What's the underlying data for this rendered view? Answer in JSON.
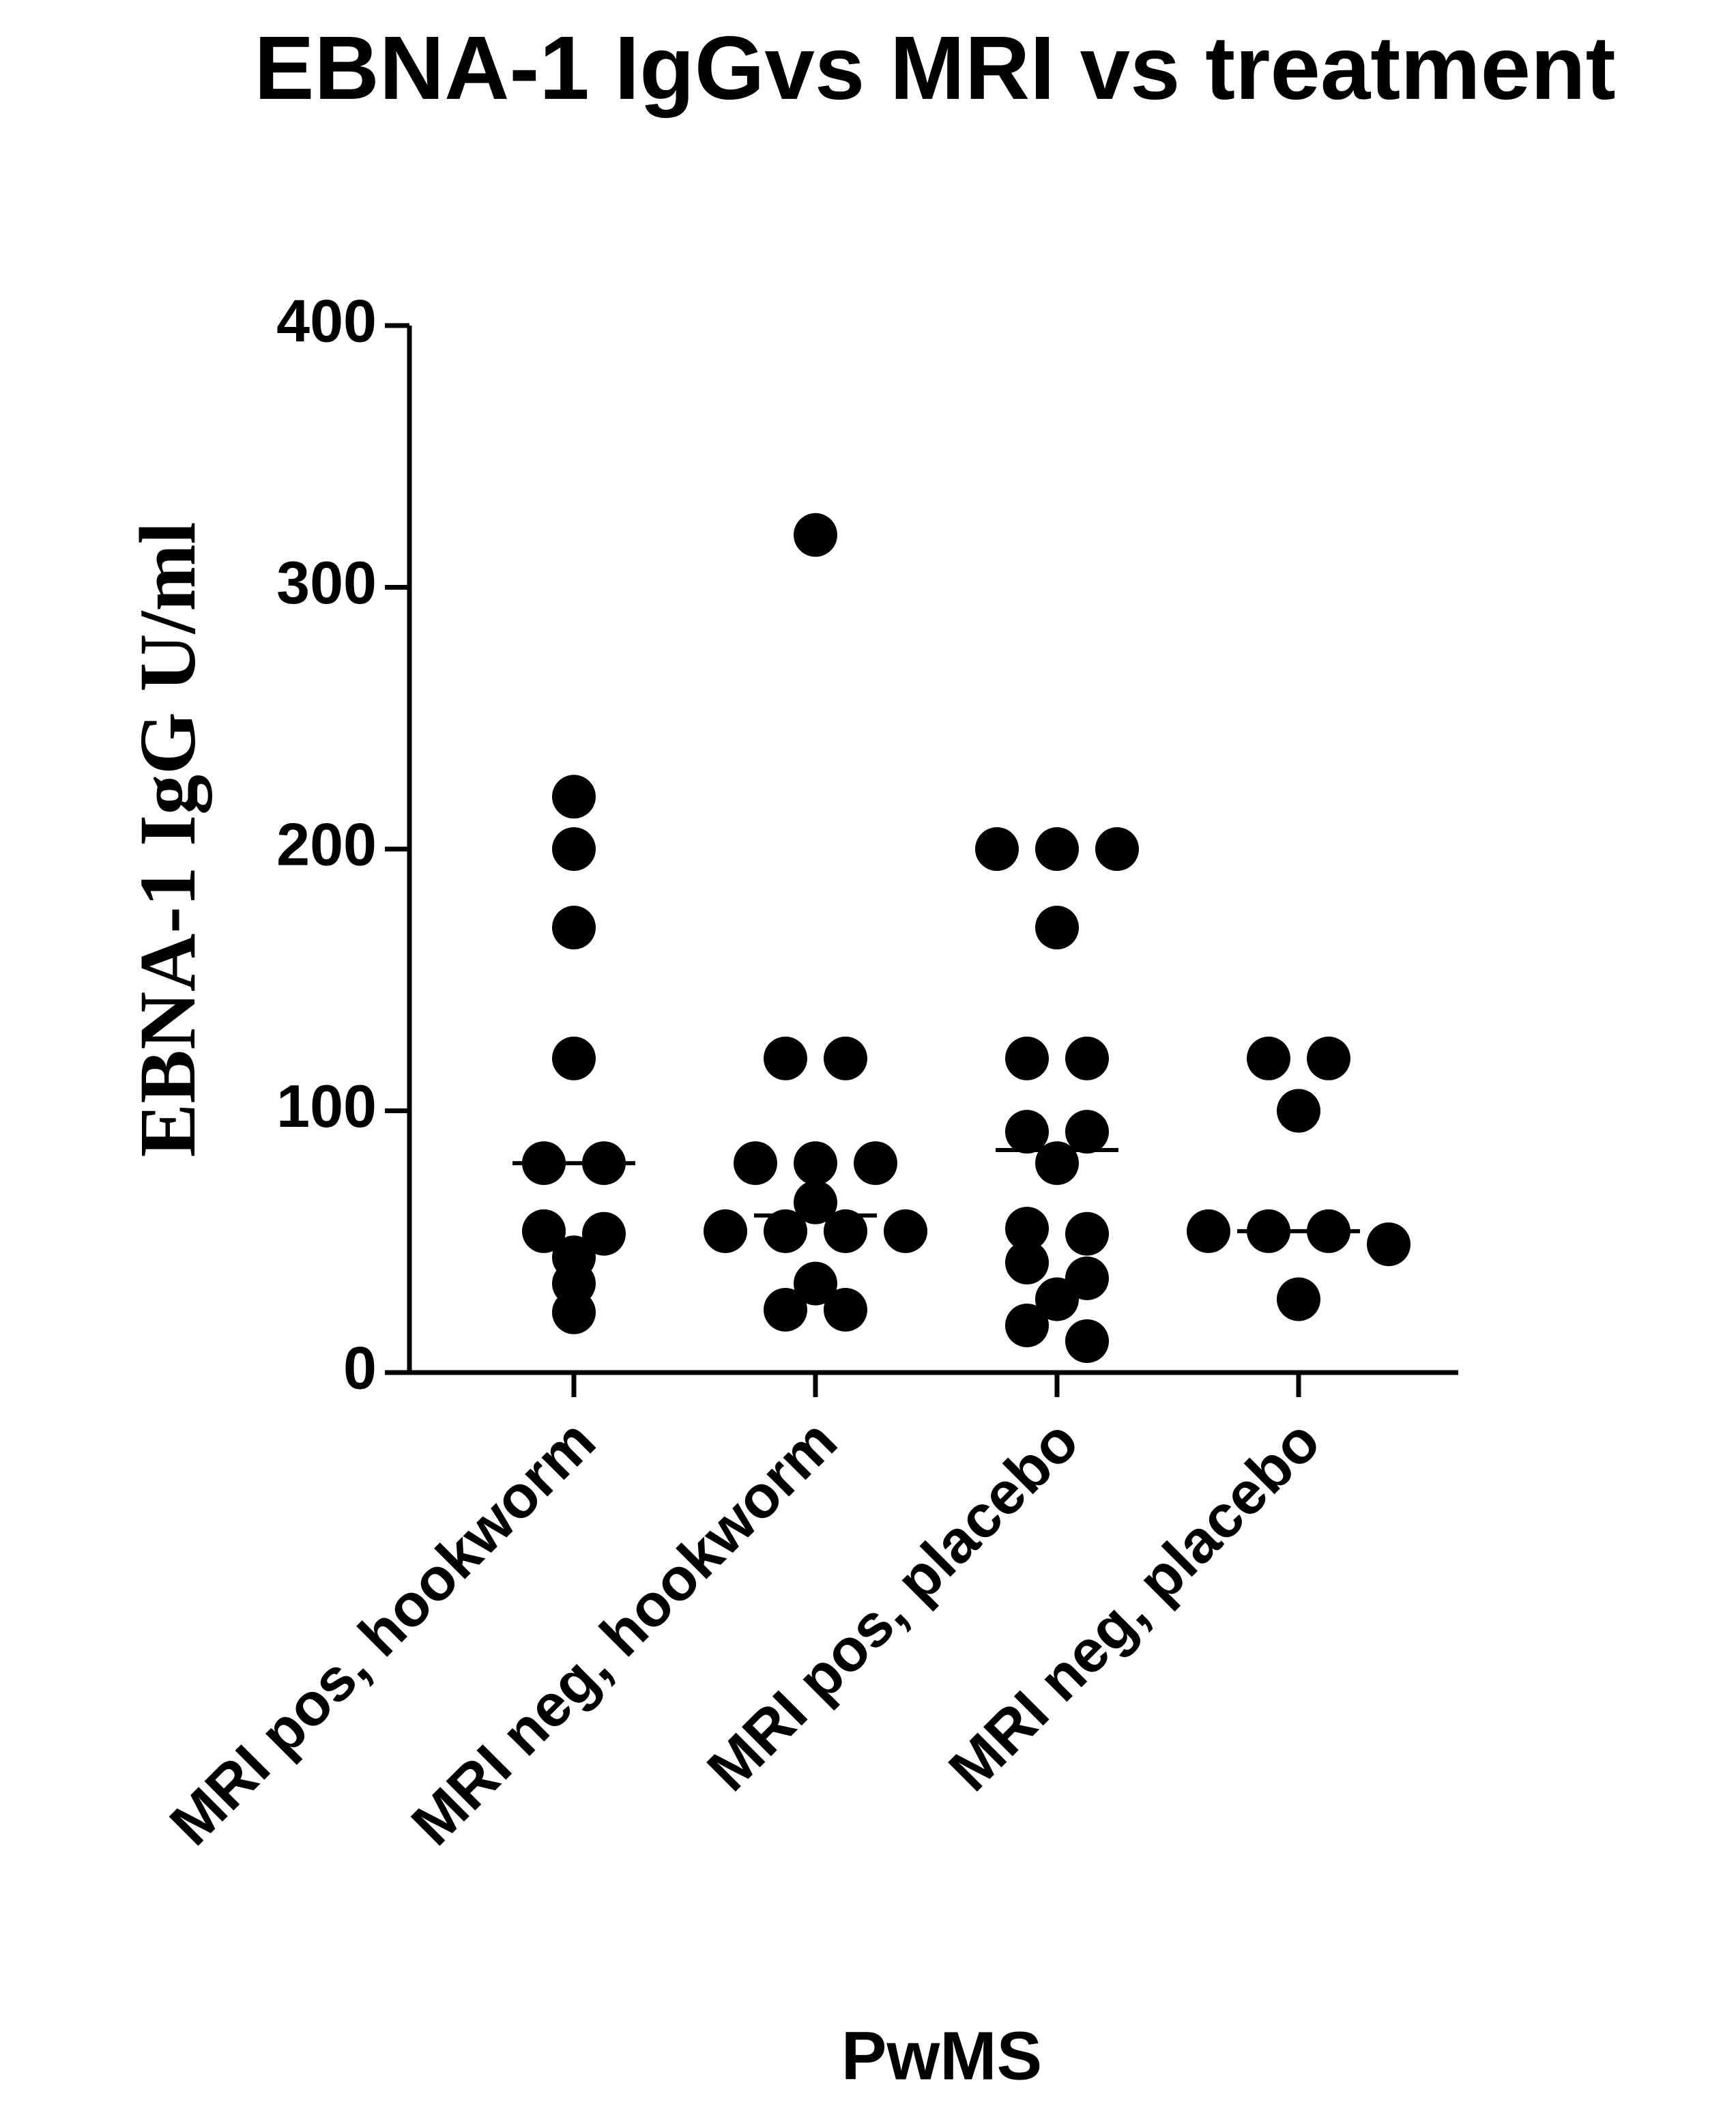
{
  "chart_data": {
    "type": "dot",
    "title": "EBNA-1 IgGvs MRI vs treatment",
    "y_label": "EBNA-1 IgG U/ml",
    "x_label": "PwMS",
    "categories": [
      "MRI pos, hookworm",
      "MRI neg, hookworm",
      "MRI pos, placebo",
      "MRI neg, placebo"
    ],
    "values": [
      [
        220,
        200,
        170,
        120,
        80,
        80,
        54,
        53,
        44,
        34,
        23
      ],
      [
        320,
        120,
        120,
        80,
        80,
        80,
        65,
        54,
        54,
        54,
        54,
        34,
        24,
        24
      ],
      [
        200,
        200,
        200,
        170,
        120,
        120,
        92,
        92,
        80,
        55,
        53,
        42,
        36,
        28,
        18,
        12
      ],
      [
        120,
        120,
        100,
        54,
        54,
        54,
        49,
        28
      ]
    ],
    "medians": [
      80,
      60,
      85,
      54
    ],
    "color": "#000000",
    "ylim": [
      0,
      400
    ],
    "yticks": [
      0,
      100,
      200,
      300,
      400
    ]
  }
}
